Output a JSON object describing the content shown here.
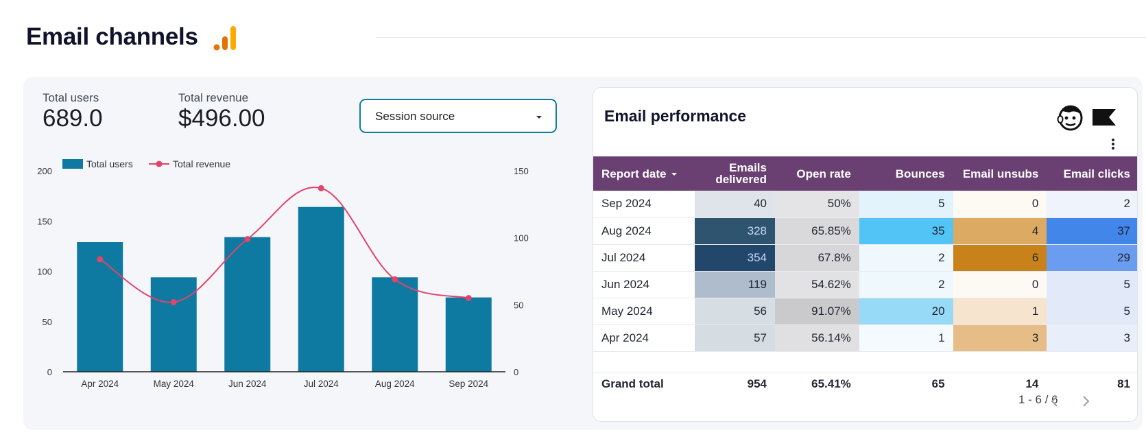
{
  "header": {
    "title": "Email channels",
    "logo_icon": "google-analytics-icon"
  },
  "kpis": {
    "total_users_label": "Total users",
    "total_users_value": "689.0",
    "total_revenue_label": "Total revenue",
    "total_revenue_value": "$496.00"
  },
  "filter": {
    "label": "Session source"
  },
  "chart_data": {
    "type": "bar+line",
    "categories": [
      "Apr 2024",
      "May 2024",
      "Jun 2024",
      "Jul 2024",
      "Aug 2024",
      "Sep 2024"
    ],
    "series": [
      {
        "name": "Total users",
        "type": "bar",
        "axis": "left",
        "color": "#0e7aa1",
        "values": [
          129,
          94,
          134,
          164,
          94,
          74
        ]
      },
      {
        "name": "Total revenue",
        "type": "line",
        "axis": "right",
        "color": "#e0456a",
        "values": [
          84,
          52,
          99,
          137,
          69,
          55
        ]
      }
    ],
    "y_left": {
      "min": 0,
      "max": 200,
      "ticks": [
        "0",
        "50",
        "100",
        "150",
        "200"
      ]
    },
    "y_right": {
      "min": 0,
      "max": 150,
      "ticks": [
        "0",
        "50",
        "100",
        "150"
      ]
    },
    "legend": [
      "Total users",
      "Total revenue"
    ]
  },
  "table": {
    "title": "Email performance",
    "icons": [
      "mailchimp-icon",
      "flag-icon"
    ],
    "columns": [
      "Report date",
      "Emails delivered",
      "Open rate",
      "Bounces",
      "Email unsubs",
      "Email clicks"
    ],
    "rows": [
      {
        "date": "Sep 2024",
        "delivered": "40",
        "open_rate": "50%",
        "bounces": "5",
        "unsubs": "0",
        "clicks": "2"
      },
      {
        "date": "Aug 2024",
        "delivered": "328",
        "open_rate": "65.85%",
        "bounces": "35",
        "unsubs": "4",
        "clicks": "37"
      },
      {
        "date": "Jul 2024",
        "delivered": "354",
        "open_rate": "67.8%",
        "bounces": "2",
        "unsubs": "6",
        "clicks": "29"
      },
      {
        "date": "Jun 2024",
        "delivered": "119",
        "open_rate": "54.62%",
        "bounces": "2",
        "unsubs": "0",
        "clicks": "5"
      },
      {
        "date": "May 2024",
        "delivered": "56",
        "open_rate": "91.07%",
        "bounces": "20",
        "unsubs": "1",
        "clicks": "5"
      },
      {
        "date": "Apr 2024",
        "delivered": "57",
        "open_rate": "56.14%",
        "bounces": "1",
        "unsubs": "3",
        "clicks": "3"
      }
    ],
    "total": {
      "label": "Grand total",
      "delivered": "954",
      "open_rate": "65.41%",
      "bounces": "65",
      "unsubs": "14",
      "clicks": "81"
    },
    "pagination": "1 - 6 / 6",
    "colors": {
      "header_bg": "#6a3f72",
      "delivered": [
        "#dfe3ea",
        "#2f5470",
        "#22476a",
        "#aebccb",
        "#d6dde3",
        "#d6dce3"
      ],
      "delivered_text": [
        "#1f2430",
        "#c9d8ff",
        "#c9d8ff",
        "#1f2430",
        "#1f2430",
        "#1f2430"
      ],
      "open_rate": [
        "#e4e4e6",
        "#d9d9dc",
        "#d7d7da",
        "#e2e2e4",
        "#cacacd",
        "#e0e0e2"
      ],
      "bounces": [
        "#e3f3fc",
        "#52c4f5",
        "#eff8fd",
        "#eff8fd",
        "#96daf8",
        "#f4fafe"
      ],
      "unsubs": [
        "#fdf9f3",
        "#ddaa63",
        "#c88219",
        "#fdf9f3",
        "#f6e4cf",
        "#e6bd86"
      ],
      "clicks": [
        "#eef3fc",
        "#4286ea",
        "#6a9df0",
        "#e2eafa",
        "#e2eafa",
        "#e8eefa"
      ]
    }
  }
}
